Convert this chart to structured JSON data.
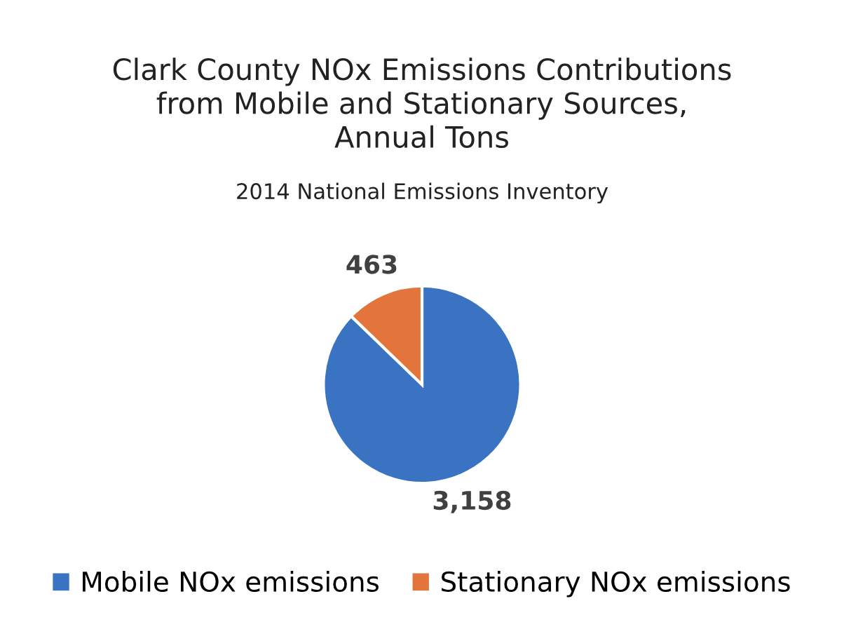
{
  "chart_data": {
    "type": "pie",
    "title": "Clark County NOx Emissions Contributions\nfrom Mobile and Stationary Sources,\nAnnual Tons",
    "subtitle": "2014 National Emissions Inventory",
    "categories": [
      "Mobile NOx emissions",
      "Stationary NOx emissions"
    ],
    "values": [
      3158,
      463
    ],
    "value_labels": [
      "3,158",
      "463"
    ],
    "colors": [
      "#3a73c2",
      "#e2743c"
    ],
    "legend": "bottom"
  }
}
